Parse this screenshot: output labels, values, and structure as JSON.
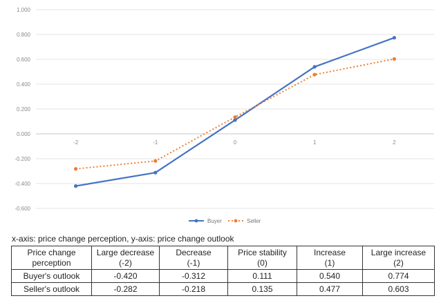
{
  "chart_data": {
    "type": "line",
    "x": [
      -2,
      -1,
      0,
      1,
      2
    ],
    "x_tick_labels": [
      "-2",
      "-1",
      "0",
      "1",
      "2"
    ],
    "ylim": [
      -0.6,
      1.0
    ],
    "y_ticks": [
      1.0,
      0.8,
      0.6,
      0.4,
      0.2,
      0.0,
      -0.2,
      -0.4,
      -0.6
    ],
    "y_tick_labels": [
      "1.000",
      "0.800",
      "0.600",
      "0.400",
      "0.200",
      "0.000",
      "-0.200",
      "-0.400",
      "-0.600"
    ],
    "grid": true,
    "legend_position": "bottom-center",
    "series": [
      {
        "name": "Buyer",
        "values": [
          -0.42,
          -0.312,
          0.111,
          0.54,
          0.774
        ],
        "color": "#4472c4",
        "style": "solid"
      },
      {
        "name": "Seller",
        "values": [
          -0.282,
          -0.218,
          0.135,
          0.477,
          0.603
        ],
        "color": "#ed7d31",
        "style": "dotted"
      }
    ]
  },
  "caption": "x-axis: price change perception, y-axis: price change outlook",
  "table": {
    "header": [
      {
        "line1": "Price change",
        "line2": "perception"
      },
      {
        "line1": "Large decrease",
        "line2": "(-2)"
      },
      {
        "line1": "Decrease",
        "line2": "(-1)"
      },
      {
        "line1": "Price stability",
        "line2": "(0)"
      },
      {
        "line1": "Increase",
        "line2": "(1)"
      },
      {
        "line1": "Large increase",
        "line2": "(2)"
      }
    ],
    "rows": [
      {
        "label": "Buyer's outlook",
        "cells": [
          "-0.420",
          "-0.312",
          "0.111",
          "0.540",
          "0.774"
        ]
      },
      {
        "label": "Seller's outlook",
        "cells": [
          "-0.282",
          "-0.218",
          "0.135",
          "0.477",
          "0.603"
        ]
      }
    ]
  }
}
